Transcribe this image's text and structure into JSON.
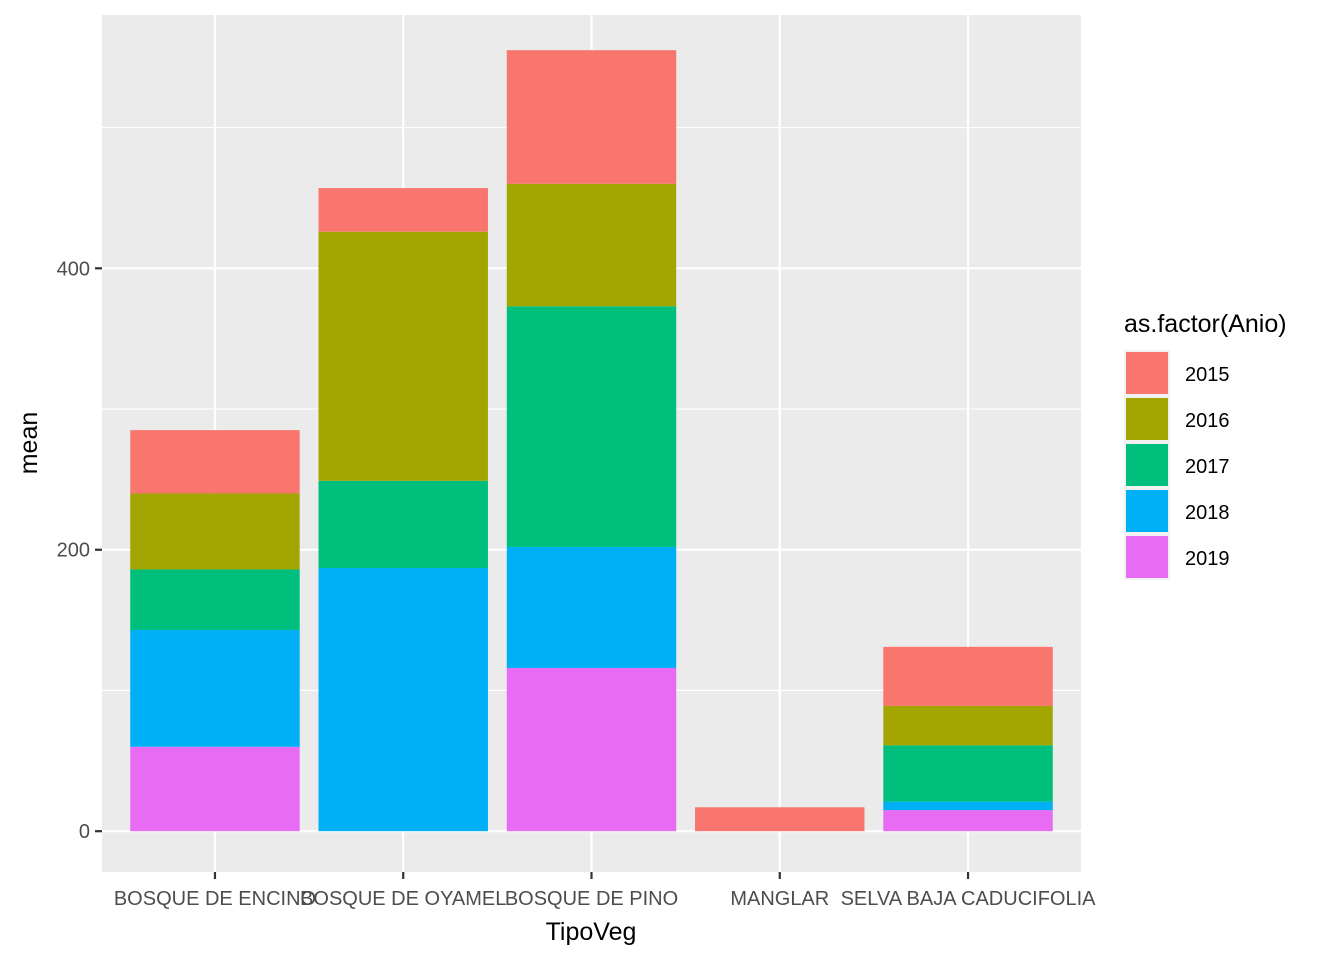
{
  "chart_data": {
    "type": "bar",
    "stacked": true,
    "xlabel": "TipoVeg",
    "ylabel": "mean",
    "legend_title": "as.factor(Anio)",
    "legend_position": "right",
    "grid": true,
    "ylim": [
      -29,
      580
    ],
    "y_ticks": [
      0,
      200,
      400
    ],
    "categories": [
      "BOSQUE DE ENCINO",
      "BOSQUE DE OYAMEL",
      "BOSQUE DE PINO",
      "MANGLAR",
      "SELVA BAJA CADUCIFOLIA"
    ],
    "series": [
      {
        "name": "2015",
        "color": "#F8766D",
        "values": [
          45,
          31,
          95,
          17,
          42
        ]
      },
      {
        "name": "2016",
        "color": "#A3A500",
        "values": [
          54,
          177,
          87,
          0,
          28
        ]
      },
      {
        "name": "2017",
        "color": "#00BF7D",
        "values": [
          43,
          62,
          171,
          0,
          40
        ]
      },
      {
        "name": "2018",
        "color": "#00B0F6",
        "values": [
          83,
          187,
          86,
          0,
          6
        ]
      },
      {
        "name": "2019",
        "color": "#E76BF3",
        "values": [
          60,
          0,
          116,
          0,
          15
        ]
      }
    ]
  }
}
